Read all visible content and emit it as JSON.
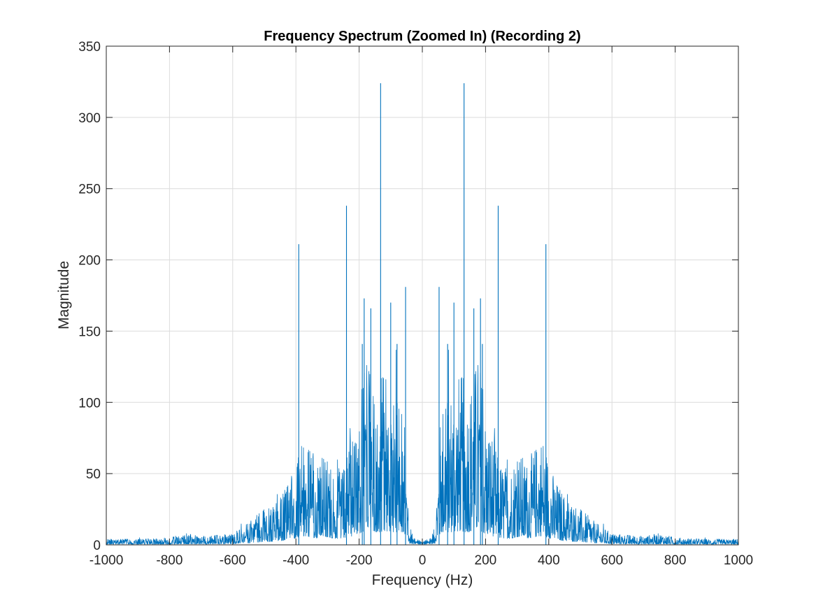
{
  "chart_data": {
    "type": "line",
    "title": "Frequency Spectrum (Zoomed In) (Recording 2)",
    "xlabel": "Frequency (Hz)",
    "ylabel": "Magnitude",
    "xlim": [
      -1000,
      1000
    ],
    "ylim": [
      0,
      350
    ],
    "xticks": [
      -1000,
      -800,
      -600,
      -400,
      -200,
      0,
      200,
      400,
      600,
      800,
      1000
    ],
    "yticks": [
      0,
      50,
      100,
      150,
      200,
      250,
      300,
      350
    ],
    "grid": true,
    "legend": "none",
    "series_color": "#0072BD",
    "symmetric_about_zero": true,
    "envelope_positive_half": [
      {
        "x": 0,
        "y": 3
      },
      {
        "x": 20,
        "y": 4
      },
      {
        "x": 40,
        "y": 12
      },
      {
        "x": 50,
        "y": 60
      },
      {
        "x": 60,
        "y": 100
      },
      {
        "x": 80,
        "y": 110
      },
      {
        "x": 100,
        "y": 115
      },
      {
        "x": 120,
        "y": 120
      },
      {
        "x": 140,
        "y": 110
      },
      {
        "x": 160,
        "y": 120
      },
      {
        "x": 180,
        "y": 135
      },
      {
        "x": 200,
        "y": 90
      },
      {
        "x": 220,
        "y": 80
      },
      {
        "x": 240,
        "y": 60
      },
      {
        "x": 260,
        "y": 55
      },
      {
        "x": 280,
        "y": 55
      },
      {
        "x": 300,
        "y": 70
      },
      {
        "x": 320,
        "y": 60
      },
      {
        "x": 340,
        "y": 60
      },
      {
        "x": 360,
        "y": 70
      },
      {
        "x": 380,
        "y": 80
      },
      {
        "x": 400,
        "y": 60
      },
      {
        "x": 420,
        "y": 45
      },
      {
        "x": 450,
        "y": 35
      },
      {
        "x": 500,
        "y": 25
      },
      {
        "x": 550,
        "y": 15
      },
      {
        "x": 600,
        "y": 8
      },
      {
        "x": 700,
        "y": 6
      },
      {
        "x": 750,
        "y": 8
      },
      {
        "x": 800,
        "y": 5
      },
      {
        "x": 900,
        "y": 4
      },
      {
        "x": 1000,
        "y": 4
      }
    ],
    "peaks": [
      {
        "x": -391,
        "y": 211
      },
      {
        "x": -240,
        "y": 238
      },
      {
        "x": -190,
        "y": 141
      },
      {
        "x": -184,
        "y": 173
      },
      {
        "x": -163,
        "y": 166
      },
      {
        "x": -132,
        "y": 324
      },
      {
        "x": -100,
        "y": 170
      },
      {
        "x": -80,
        "y": 141
      },
      {
        "x": -53,
        "y": 181
      },
      {
        "x": 53,
        "y": 181
      },
      {
        "x": 80,
        "y": 141
      },
      {
        "x": 100,
        "y": 170
      },
      {
        "x": 132,
        "y": 324
      },
      {
        "x": 163,
        "y": 166
      },
      {
        "x": 184,
        "y": 173
      },
      {
        "x": 190,
        "y": 141
      },
      {
        "x": 240,
        "y": 238
      },
      {
        "x": 391,
        "y": 211
      }
    ]
  }
}
